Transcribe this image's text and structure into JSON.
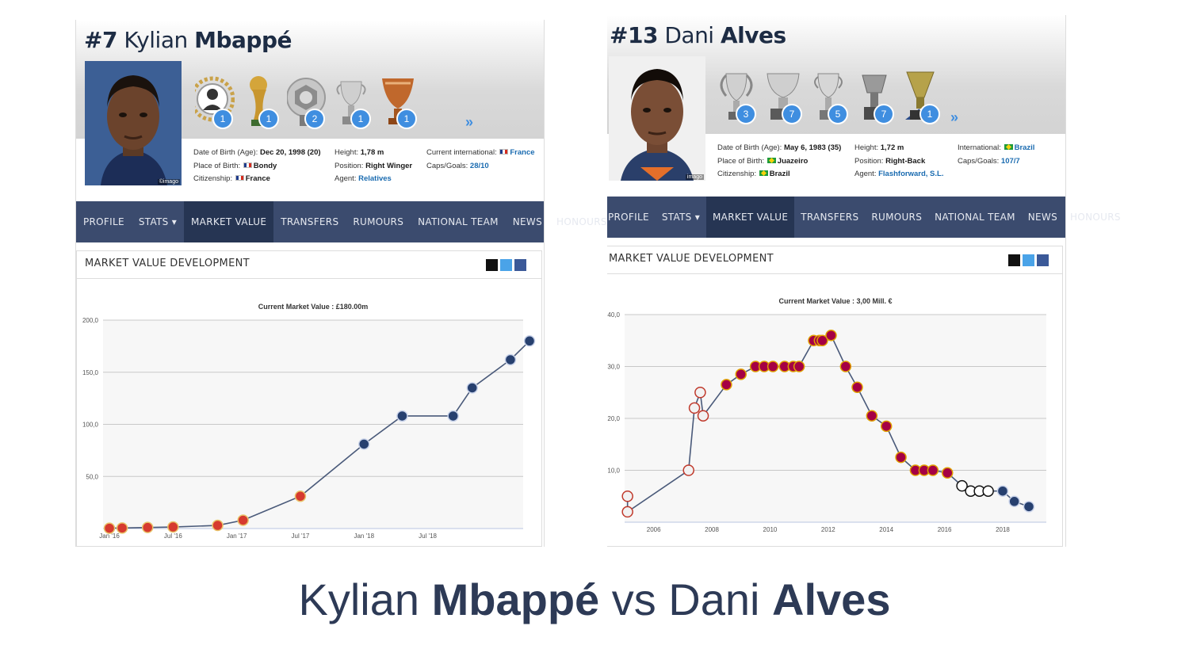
{
  "slide_title": {
    "part1": "Kylian ",
    "part2": "Mbappé",
    "part3": " vs Dani ",
    "part4": "Alves"
  },
  "left": {
    "number": "#7",
    "first_name": "Kylian",
    "last_name": "Mbappé",
    "photo_credit": "©imago",
    "trophies": [
      {
        "icon": "player-of-year-icon",
        "count": "1"
      },
      {
        "icon": "world-cup-icon",
        "count": "1"
      },
      {
        "icon": "ligue1-trophy-icon",
        "count": "2"
      },
      {
        "icon": "french-cup-icon",
        "count": "1"
      },
      {
        "icon": "league-cup-icon",
        "count": "1"
      }
    ],
    "more": "»",
    "info": {
      "col1": [
        {
          "label": "Date of Birth (Age):",
          "value": "Dec 20, 1998 (20)"
        },
        {
          "label": "Place of Birth:",
          "value": "Bondy",
          "flag": "fr"
        },
        {
          "label": "Citizenship:",
          "value": "France",
          "flag": "fr"
        }
      ],
      "col2": [
        {
          "label": "Height:",
          "value": "1,78 m"
        },
        {
          "label": "Position:",
          "value": "Right Winger"
        },
        {
          "label": "Agent:",
          "value": "Relatives",
          "link": true
        }
      ],
      "col3": [
        {
          "label": "Current international:",
          "value": "France",
          "flag": "fr",
          "link": true
        },
        {
          "label": "Caps/Goals:",
          "value": "28/10",
          "link": true
        }
      ]
    },
    "nav": [
      "PROFILE",
      "STATS ▾",
      "MARKET VALUE",
      "TRANSFERS",
      "RUMOURS",
      "NATIONAL TEAM",
      "NEWS",
      "HONOURS"
    ],
    "nav_active": 2,
    "box_title": "MARKET VALUE DEVELOPMENT"
  },
  "right": {
    "number": "#13",
    "first_name": "Dani",
    "last_name": "Alves",
    "photo_credit": "imago",
    "trophies": [
      {
        "icon": "champions-league-icon",
        "count": "3"
      },
      {
        "icon": "la-liga-trophy-icon",
        "count": "7"
      },
      {
        "icon": "copa-del-rey-icon",
        "count": "5"
      },
      {
        "icon": "supercopa-icon",
        "count": "7"
      },
      {
        "icon": "serie-a-trophy-icon",
        "count": "1"
      }
    ],
    "more": "»",
    "info": {
      "col1": [
        {
          "label": "Date of Birth (Age):",
          "value": "May 6, 1983 (35)"
        },
        {
          "label": "Place of Birth:",
          "value": "Juazeiro",
          "flag": "br"
        },
        {
          "label": "Citizenship:",
          "value": "Brazil",
          "flag": "br"
        }
      ],
      "col2": [
        {
          "label": "Height:",
          "value": "1,72 m"
        },
        {
          "label": "Position:",
          "value": "Right-Back"
        },
        {
          "label": "Agent:",
          "value": "Flashforward, S.L.",
          "link": true
        }
      ],
      "col3": [
        {
          "label": "International:",
          "value": "Brazil",
          "flag": "br",
          "link": true
        },
        {
          "label": "Caps/Goals:",
          "value": "107/7",
          "link": true
        }
      ]
    },
    "nav": [
      "PROFILE",
      "STATS ▾",
      "MARKET VALUE",
      "TRANSFERS",
      "RUMOURS",
      "NATIONAL TEAM",
      "NEWS",
      "HONOURS"
    ],
    "nav_active": 2,
    "box_title": "MARKET VALUE DEVELOPMENT"
  },
  "colors": {
    "navy": "#3b4b6e",
    "nav_active": "#263553",
    "accent_blue": "#3f8ee0",
    "line": "#4a5a7a",
    "title": "#2d3a56"
  },
  "chart_data": [
    {
      "type": "line",
      "title": "Current Market Value : £180.00m",
      "ylim": [
        0,
        200
      ],
      "yticks": [
        50,
        100,
        150,
        200
      ],
      "ytick_labels": [
        "50,0",
        "100,0",
        "150,0",
        "200,0"
      ],
      "xlim": [
        2015.95,
        2019.25
      ],
      "xticks": [
        2016.0,
        2016.5,
        2017.0,
        2017.5,
        2018.0,
        2018.5
      ],
      "xtick_labels": [
        "Jan '16",
        "Jul '16",
        "Jan '17",
        "Jul '17",
        "Jan '18",
        "Jul '18"
      ],
      "series": [
        {
          "points": [
            [
              2016.0,
              0.3
            ],
            [
              2016.1,
              0.5
            ],
            [
              2016.3,
              1
            ],
            [
              2016.5,
              1.5
            ],
            [
              2016.85,
              3
            ],
            [
              2017.05,
              8
            ],
            [
              2017.5,
              31
            ],
            [
              2018.0,
              81
            ],
            [
              2018.3,
              108
            ],
            [
              2018.7,
              108
            ],
            [
              2018.85,
              135
            ],
            [
              2019.15,
              162
            ],
            [
              2019.3,
              180
            ]
          ],
          "markers": [
            "monaco",
            "monaco",
            "monaco",
            "monaco",
            "monaco",
            "monaco",
            "monaco",
            "psg",
            "psg",
            "psg",
            "psg",
            "psg",
            "psg"
          ]
        }
      ]
    },
    {
      "type": "line",
      "title": "Current Market Value : 3,00 Mill. €",
      "ylim": [
        0,
        40
      ],
      "yticks": [
        10,
        20,
        30,
        40
      ],
      "ytick_labels": [
        "10,0",
        "20,0",
        "30,0",
        "40,0"
      ],
      "xlim": [
        2005.0,
        2019.5
      ],
      "xticks": [
        2006,
        2008,
        2010,
        2012,
        2014,
        2016,
        2018
      ],
      "xtick_labels": [
        "2006",
        "2008",
        "2010",
        "2012",
        "2014",
        "2016",
        "2018"
      ],
      "series": [
        {
          "points": [
            [
              2005.1,
              5
            ],
            [
              2005.1,
              2
            ],
            [
              2007.2,
              10
            ],
            [
              2007.4,
              22
            ],
            [
              2007.6,
              25
            ],
            [
              2007.7,
              20.5
            ],
            [
              2008.5,
              26.5
            ],
            [
              2009.0,
              28.5
            ],
            [
              2009.5,
              30
            ],
            [
              2009.8,
              30
            ],
            [
              2010.1,
              30
            ],
            [
              2010.5,
              30
            ],
            [
              2010.8,
              30
            ],
            [
              2011.0,
              30
            ],
            [
              2011.5,
              35
            ],
            [
              2011.7,
              35
            ],
            [
              2011.8,
              35
            ],
            [
              2012.1,
              36
            ],
            [
              2012.6,
              30
            ],
            [
              2013.0,
              26
            ],
            [
              2013.5,
              20.5
            ],
            [
              2014.0,
              18.5
            ],
            [
              2014.5,
              12.5
            ],
            [
              2015.0,
              10
            ],
            [
              2015.3,
              10
            ],
            [
              2015.6,
              10
            ],
            [
              2016.1,
              9.5
            ],
            [
              2016.6,
              7
            ],
            [
              2016.9,
              6
            ],
            [
              2017.2,
              6
            ],
            [
              2017.5,
              6
            ],
            [
              2018.0,
              6
            ],
            [
              2018.4,
              4
            ],
            [
              2018.9,
              3
            ]
          ],
          "markers": [
            "sevilla",
            "sevilla",
            "sevilla",
            "sevilla",
            "sevilla",
            "sevilla",
            "barca",
            "barca",
            "barca",
            "barca",
            "barca",
            "barca",
            "barca",
            "barca",
            "barca",
            "barca",
            "barca",
            "barca",
            "barca",
            "barca",
            "barca",
            "barca",
            "barca",
            "barca",
            "barca",
            "barca",
            "barca",
            "juve",
            "juve",
            "juve",
            "juve",
            "psg",
            "psg",
            "psg"
          ]
        }
      ]
    }
  ]
}
